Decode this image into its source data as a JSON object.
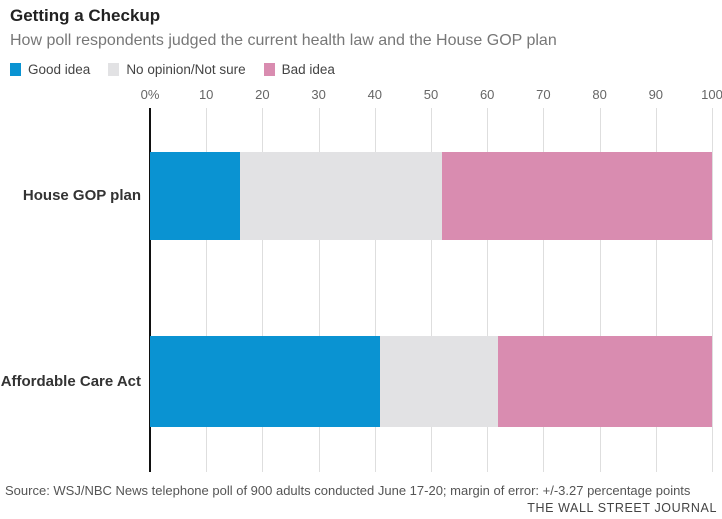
{
  "header": {
    "title": "Getting a Checkup",
    "subtitle": "How poll respondents judged the current health law and the House GOP plan"
  },
  "legend": [
    {
      "label": "Good idea",
      "color": "#0a93d2"
    },
    {
      "label": "No opinion/Not sure",
      "color": "#e2e2e4"
    },
    {
      "label": "Bad idea",
      "color": "#d98cb0"
    }
  ],
  "chart_data": {
    "type": "bar",
    "orientation": "horizontal",
    "stacked": true,
    "title": "Getting a Checkup",
    "subtitle": "How poll respondents judged the current health law and the House GOP plan",
    "categories": [
      "House GOP plan",
      "Affordable Care Act"
    ],
    "series": [
      {
        "name": "Good idea",
        "color": "#0a93d2",
        "values": [
          16,
          41
        ]
      },
      {
        "name": "No opinion/Not sure",
        "color": "#e2e2e4",
        "values": [
          36,
          21
        ]
      },
      {
        "name": "Bad idea",
        "color": "#d98cb0",
        "values": [
          48,
          38
        ]
      }
    ],
    "x_axis": {
      "min": 0,
      "max": 100,
      "tick_labels": [
        "0%",
        "10",
        "20",
        "30",
        "40",
        "50",
        "60",
        "70",
        "80",
        "90",
        "100"
      ],
      "tick_values": [
        0,
        10,
        20,
        30,
        40,
        50,
        60,
        70,
        80,
        90,
        100
      ]
    },
    "grid": true,
    "legend_position": "top",
    "colors": {
      "axis_line": "#111111",
      "gridline": "#dedede",
      "tick_text": "#666666",
      "category_text": "#333333"
    }
  },
  "footer": {
    "source": "Source: WSJ/NBC News telephone poll of 900 adults conducted June 17-20; margin of error: +/-3.27 percentage points",
    "credit": "THE WALL STREET JOURNAL"
  }
}
